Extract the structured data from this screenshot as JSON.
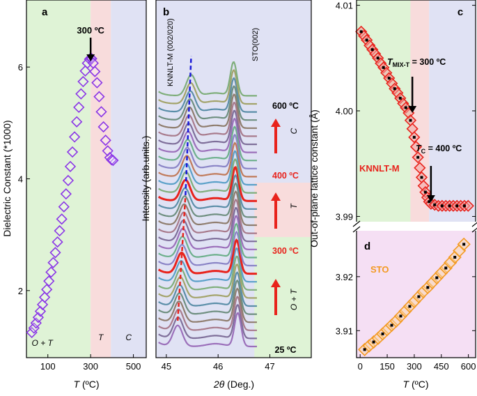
{
  "colors": {
    "zone_ot": "#dff3d6",
    "zone_t": "#f8dcdc",
    "zone_c": "#e0e2f4",
    "zone_sto": "#f5dff4",
    "purple": "#8a35e6",
    "red": "#e8231c",
    "orange": "#f39a22",
    "dash_blue": "#1a1ad8",
    "dash_red": "#e8231c"
  },
  "chart_data": [
    {
      "id": "a",
      "type": "scatter",
      "panel_label": "a",
      "xlabel_italic": "T",
      "xlabel_rest": " (ºC)",
      "ylabel": "Dielectric Constant (*1000)",
      "xlim": [
        0,
        560
      ],
      "ylim": [
        0.8,
        7.2
      ],
      "xticks": [
        100,
        300,
        500
      ],
      "xtick_labels": [
        "100",
        "300",
        "500"
      ],
      "yticks": [
        2,
        4,
        6
      ],
      "ytick_labels": [
        "2",
        "4",
        "6"
      ],
      "zones": [
        {
          "name": "O + T",
          "from": 0,
          "to": 300
        },
        {
          "name": "T",
          "from": 300,
          "to": 395
        },
        {
          "name": "C",
          "from": 395,
          "to": 560
        }
      ],
      "annotation": "300 ºC",
      "annotation_x": 300,
      "series": [
        {
          "name": "Dielectric",
          "x": [
            25,
            35,
            45,
            55,
            65,
            75,
            85,
            95,
            105,
            115,
            125,
            135,
            145,
            155,
            165,
            175,
            185,
            195,
            205,
            215,
            225,
            235,
            245,
            255,
            265,
            275,
            285,
            295,
            300,
            305,
            312,
            320,
            330,
            340,
            350,
            360,
            370,
            380,
            390,
            398,
            405
          ],
          "y": [
            1.25,
            1.33,
            1.42,
            1.52,
            1.63,
            1.75,
            1.88,
            2.02,
            2.17,
            2.33,
            2.5,
            2.68,
            2.87,
            3.07,
            3.28,
            3.5,
            3.73,
            3.97,
            4.22,
            4.48,
            4.75,
            5.02,
            5.28,
            5.52,
            5.74,
            5.93,
            6.07,
            6.14,
            6.16,
            6.15,
            6.07,
            5.92,
            5.72,
            5.47,
            5.2,
            4.93,
            4.69,
            4.5,
            4.38,
            4.34,
            4.33
          ]
        }
      ]
    },
    {
      "id": "b",
      "type": "line",
      "panel_label": "b",
      "xlabel_italic": "2θ",
      "xlabel_rest": " (Deg.)",
      "ylabel": "Intensity (arb.units.)",
      "xlim": [
        44.8,
        47.8
      ],
      "xticks": [
        45,
        46,
        47
      ],
      "xtick_labels": [
        "45",
        "46",
        "47"
      ],
      "peak1_label": "KNNLT-M (002/020)",
      "peak2_label": "STO(002)",
      "peak1_start_deg": 45.22,
      "peak1_end_deg": 45.48,
      "peak2_deg": 46.3,
      "n_curves": 32,
      "temperature_labels": [
        "600 ºC",
        "400 ºC",
        "300 ºC",
        "25 ºC"
      ],
      "phase_labels": [
        "C",
        "T",
        "O + T"
      ],
      "highlighted_curves": [
        9,
        18
      ],
      "palette": [
        "#9b6fba",
        "#7f6f9a",
        "#a87b8c",
        "#8f7d6e",
        "#6f8f80",
        "#5b8ea8",
        "#a3a36a",
        "#7fae7b",
        "#5aa0c8",
        "#c07a5a",
        "#8a84c6",
        "#6db08c"
      ]
    },
    {
      "id": "c",
      "type": "scatter",
      "panel_label": "c",
      "xlim": [
        0,
        640
      ],
      "ylim": [
        3.9895,
        4.0105
      ],
      "yticks": [
        3.99,
        4.0,
        4.01
      ],
      "ytick_labels": [
        "3.99",
        "4.00",
        "4.01"
      ],
      "series_label": "KNNLT-M",
      "annotation_mix": "T",
      "annotation_mix_sub": "MIX-T",
      "annotation_mix_value": " = 300 ºC",
      "annotation_c": "T",
      "annotation_c_sub": "C",
      "annotation_c_value": " = 400 ºC",
      "zones": [
        {
          "name": "O + T",
          "from": 0,
          "to": 290
        },
        {
          "name": "T",
          "from": 290,
          "to": 390
        },
        {
          "name": "C",
          "from": 390,
          "to": 640
        }
      ],
      "series": [
        {
          "name": "KNNLT-M",
          "x": [
            25,
            40,
            55,
            70,
            85,
            100,
            115,
            130,
            145,
            160,
            175,
            190,
            205,
            220,
            235,
            250,
            265,
            280,
            290,
            300,
            310,
            320,
            330,
            340,
            350,
            360,
            370,
            380,
            390,
            400,
            420,
            440,
            460,
            480,
            500,
            520,
            540,
            560,
            580,
            600
          ],
          "y": [
            4.0075,
            4.0071,
            4.0067,
            4.0062,
            4.0058,
            4.0054,
            4.005,
            4.0045,
            4.0041,
            4.0036,
            4.0031,
            4.0026,
            4.0021,
            4.0017,
            4.0012,
            4.0007,
            4.0003,
            3.9998,
            3.9991,
            3.9983,
            3.9975,
            3.9966,
            3.9956,
            3.9946,
            3.9937,
            3.9929,
            3.9923,
            3.9918,
            3.9914,
            3.9912,
            3.9911,
            3.991,
            3.991,
            3.991,
            3.991,
            3.991,
            3.991,
            3.991,
            3.991,
            3.991
          ]
        }
      ]
    },
    {
      "id": "d",
      "type": "scatter",
      "panel_label": "d",
      "xlabel_italic": "T",
      "xlabel_rest": " (ºC)",
      "xlim": [
        -20,
        640
      ],
      "ylim": [
        3.905,
        3.9285
      ],
      "xticks": [
        0,
        150,
        300,
        450,
        600
      ],
      "xtick_labels": [
        "0",
        "150",
        "300",
        "450",
        "600"
      ],
      "yticks": [
        3.91,
        3.92
      ],
      "ytick_labels": [
        "3.91",
        "3.92"
      ],
      "series_label": "STO",
      "shared_ylabel": "Out-of-plane lattice constant (Å)",
      "series": [
        {
          "name": "STO",
          "x": [
            25,
            50,
            75,
            100,
            125,
            150,
            175,
            200,
            225,
            250,
            275,
            300,
            325,
            350,
            375,
            400,
            425,
            450,
            475,
            500,
            525,
            550,
            575
          ],
          "y": [
            3.9065,
            3.9072,
            3.9079,
            3.9086,
            3.9094,
            3.9102,
            3.911,
            3.9118,
            3.9127,
            3.9136,
            3.9145,
            3.9154,
            3.9163,
            3.9172,
            3.918,
            3.9189,
            3.9198,
            3.9207,
            3.9216,
            3.9226,
            3.9236,
            3.9248,
            3.926
          ]
        }
      ]
    }
  ]
}
